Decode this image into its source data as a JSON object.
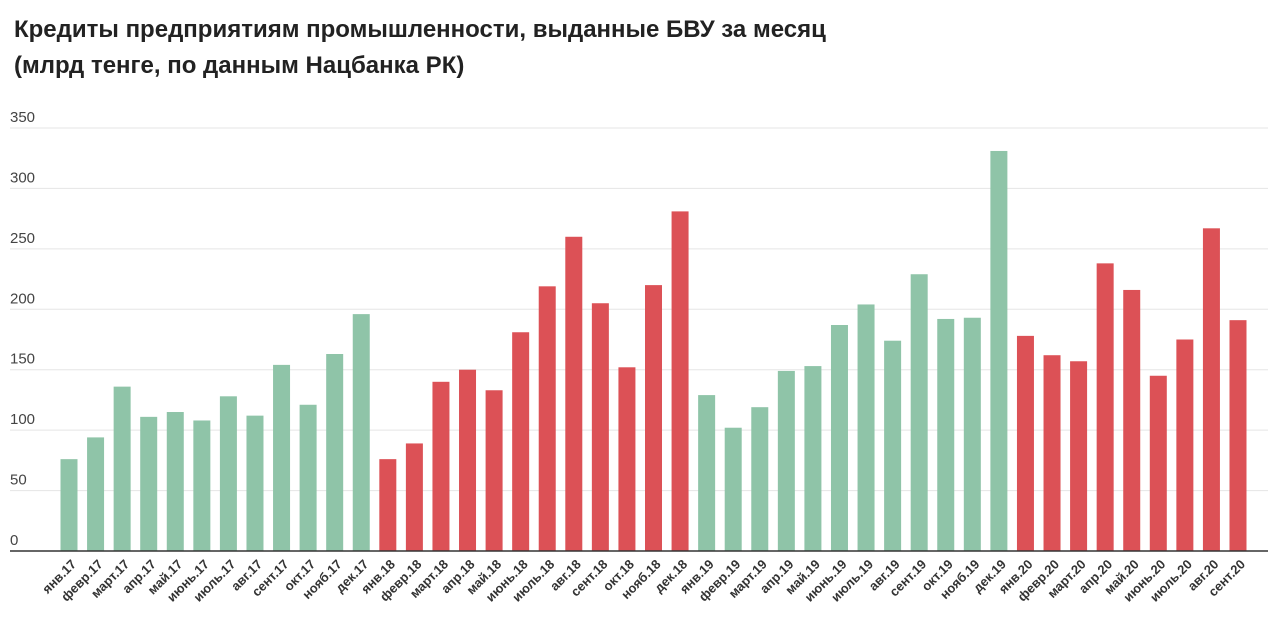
{
  "chart_data": {
    "type": "bar",
    "title_line1": "Кредиты предприятиям промышленности, выданные БВУ за месяц",
    "title_line2": "(млрд тенге, по данным Нацбанка РК)",
    "xlabel": "",
    "ylabel": "",
    "ylim": [
      0,
      350
    ],
    "yticks": [
      0,
      50,
      100,
      150,
      200,
      250,
      300,
      350
    ],
    "grid": true,
    "legend": "none",
    "colors": {
      "green": "#8fc4a8",
      "red": "#dc5156",
      "axis": "#333333",
      "grid": "#e5e5e5"
    },
    "categories": [
      "янв.17",
      "февр.17",
      "март.17",
      "апр.17",
      "май.17",
      "июнь.17",
      "июль.17",
      "авг.17",
      "сент.17",
      "окт.17",
      "нояб.17",
      "дек.17",
      "янв.18",
      "февр.18",
      "март.18",
      "апр.18",
      "май.18",
      "июнь.18",
      "июль.18",
      "авг.18",
      "сент.18",
      "окт.18",
      "нояб.18",
      "дек.18",
      "янв.19",
      "февр.19",
      "март.19",
      "апр.19",
      "май.19",
      "июнь.19",
      "июль.19",
      "авг.19",
      "сент.19",
      "окт.19",
      "нояб.19",
      "дек.19",
      "янв.20",
      "февр.20",
      "март.20",
      "апр.20",
      "май.20",
      "июнь.20",
      "июль.20",
      "авг.20",
      "сент.20"
    ],
    "values": [
      76,
      94,
      136,
      111,
      115,
      108,
      128,
      112,
      154,
      121,
      163,
      196,
      76,
      89,
      140,
      150,
      133,
      181,
      219,
      260,
      205,
      152,
      220,
      281,
      129,
      102,
      119,
      149,
      153,
      187,
      204,
      174,
      229,
      192,
      193,
      331,
      178,
      162,
      157,
      238,
      216,
      145,
      175,
      267,
      191
    ],
    "bar_colors": [
      "green",
      "green",
      "green",
      "green",
      "green",
      "green",
      "green",
      "green",
      "green",
      "green",
      "green",
      "green",
      "red",
      "red",
      "red",
      "red",
      "red",
      "red",
      "red",
      "red",
      "red",
      "red",
      "red",
      "red",
      "green",
      "green",
      "green",
      "green",
      "green",
      "green",
      "green",
      "green",
      "green",
      "green",
      "green",
      "green",
      "red",
      "red",
      "red",
      "red",
      "red",
      "red",
      "red",
      "red",
      "red"
    ]
  }
}
